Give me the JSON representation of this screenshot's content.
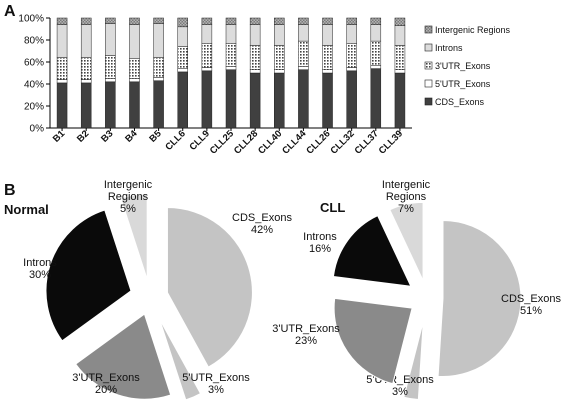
{
  "panels": {
    "a": "A",
    "b": "B"
  },
  "chart_data": [
    {
      "type": "bar",
      "stacked": true,
      "percent_axis": true,
      "categories": [
        "B1",
        "B2",
        "B3",
        "B4",
        "B5",
        "CLL6",
        "CLL9",
        "CLL25",
        "CLL28",
        "CLL40",
        "CLL44",
        "CLL26",
        "CLL32",
        "CLL37",
        "CLL39"
      ],
      "yticks": [
        "0%",
        "20%",
        "40%",
        "60%",
        "80%",
        "100%"
      ],
      "ylim": [
        0,
        100
      ],
      "legend_position": "right",
      "series": [
        {
          "name": "CDS_Exons",
          "color": "#404040",
          "pattern": "solid",
          "values": [
            41,
            41,
            42,
            42,
            43,
            51,
            52,
            53,
            50,
            50,
            53,
            50,
            52,
            54,
            50
          ]
        },
        {
          "name": "5'UTR_Exons",
          "color": "#ffffff",
          "pattern": "solid",
          "values": [
            3,
            3,
            3,
            3,
            3,
            3,
            3,
            3,
            3,
            3,
            3,
            3,
            3,
            3,
            3
          ]
        },
        {
          "name": "3'UTR_Exons",
          "color": "#ffffff",
          "pattern": "dots",
          "values": [
            20,
            20,
            21,
            18,
            18,
            20,
            22,
            21,
            22,
            22,
            23,
            22,
            22,
            22,
            22
          ]
        },
        {
          "name": "Introns",
          "color": "#dcdcdc",
          "pattern": "solid",
          "values": [
            30,
            30,
            29,
            31,
            31,
            18,
            17,
            17,
            19,
            19,
            15,
            19,
            17,
            15,
            18
          ]
        },
        {
          "name": "Intergenic Regions",
          "color": "#9a9a9a",
          "pattern": "checks",
          "values": [
            6,
            6,
            5,
            6,
            5,
            8,
            6,
            6,
            6,
            6,
            6,
            6,
            6,
            6,
            7
          ]
        }
      ]
    },
    {
      "type": "pie",
      "title": "Normal",
      "exploded": true,
      "slices": [
        {
          "name": "CDS_Exons",
          "label": [
            "CDS_Exons"
          ],
          "pct_label": "42%",
          "value": 42,
          "color": "#c4c4c4"
        },
        {
          "name": "5'UTR_Exons",
          "label": [
            "5'UTR_Exons"
          ],
          "pct_label": "3%",
          "value": 3,
          "color": "#c4c4c4"
        },
        {
          "name": "3'UTR_Exons",
          "label": [
            "3'UTR_Exons"
          ],
          "pct_label": "20%",
          "value": 20,
          "color": "#8a8a8a"
        },
        {
          "name": "Introns",
          "label": [
            "Introns"
          ],
          "pct_label": "30%",
          "value": 30,
          "color": "#0a0a0a"
        },
        {
          "name": "Intergenic Regions",
          "label": [
            "Intergenic",
            "Regions"
          ],
          "pct_label": "5%",
          "value": 5,
          "color": "#d9d9d9"
        }
      ]
    },
    {
      "type": "pie",
      "title": "CLL",
      "exploded": true,
      "slices": [
        {
          "name": "CDS_Exons",
          "label": [
            "CDS_Exons"
          ],
          "pct_label": "51%",
          "value": 51,
          "color": "#c4c4c4"
        },
        {
          "name": "5'UTR_Exons",
          "label": [
            "5'UTR_Exons"
          ],
          "pct_label": "3%",
          "value": 3,
          "color": "#c4c4c4"
        },
        {
          "name": "3'UTR_Exons",
          "label": [
            "3'UTR_Exons"
          ],
          "pct_label": "23%",
          "value": 23,
          "color": "#8a8a8a"
        },
        {
          "name": "Introns",
          "label": [
            "Introns"
          ],
          "pct_label": "16%",
          "value": 16,
          "color": "#0a0a0a"
        },
        {
          "name": "Intergenic Regions",
          "label": [
            "Intergenic",
            "Regions"
          ],
          "pct_label": "7%",
          "value": 7,
          "color": "#d9d9d9"
        }
      ]
    }
  ]
}
